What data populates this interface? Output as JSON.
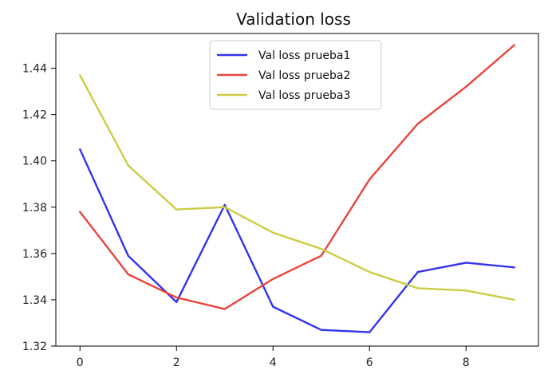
{
  "chart_data": {
    "type": "line",
    "title": "Validation loss",
    "xlabel": "",
    "ylabel": "",
    "x": [
      0,
      1,
      2,
      3,
      4,
      5,
      6,
      7,
      8,
      9
    ],
    "xlim": [
      -0.5,
      9.5
    ],
    "ylim": [
      1.32,
      1.455
    ],
    "xticks": [
      0,
      2,
      4,
      6,
      8
    ],
    "xtick_labels": [
      "0",
      "2",
      "4",
      "6",
      "8"
    ],
    "yticks": [
      1.32,
      1.34,
      1.36,
      1.38,
      1.4,
      1.42,
      1.44
    ],
    "ytick_labels": [
      "1.32",
      "1.34",
      "1.36",
      "1.38",
      "1.40",
      "1.42",
      "1.44"
    ],
    "grid": false,
    "legend_position": "top-center",
    "series": [
      {
        "name": "Val loss prueba1",
        "color": "#3333ee",
        "values": [
          1.405,
          1.359,
          1.339,
          1.381,
          1.337,
          1.327,
          1.326,
          1.352,
          1.356,
          1.354
        ]
      },
      {
        "name": "Val loss prueba2",
        "color": "#e8453c",
        "values": [
          1.378,
          1.351,
          1.341,
          1.336,
          1.349,
          1.359,
          1.392,
          1.416,
          1.432,
          1.45
        ]
      },
      {
        "name": "Val loss prueba3",
        "color": "#cccc44",
        "values": [
          1.437,
          1.398,
          1.379,
          1.38,
          1.369,
          1.362,
          1.352,
          1.345,
          1.344,
          1.34
        ]
      }
    ]
  }
}
